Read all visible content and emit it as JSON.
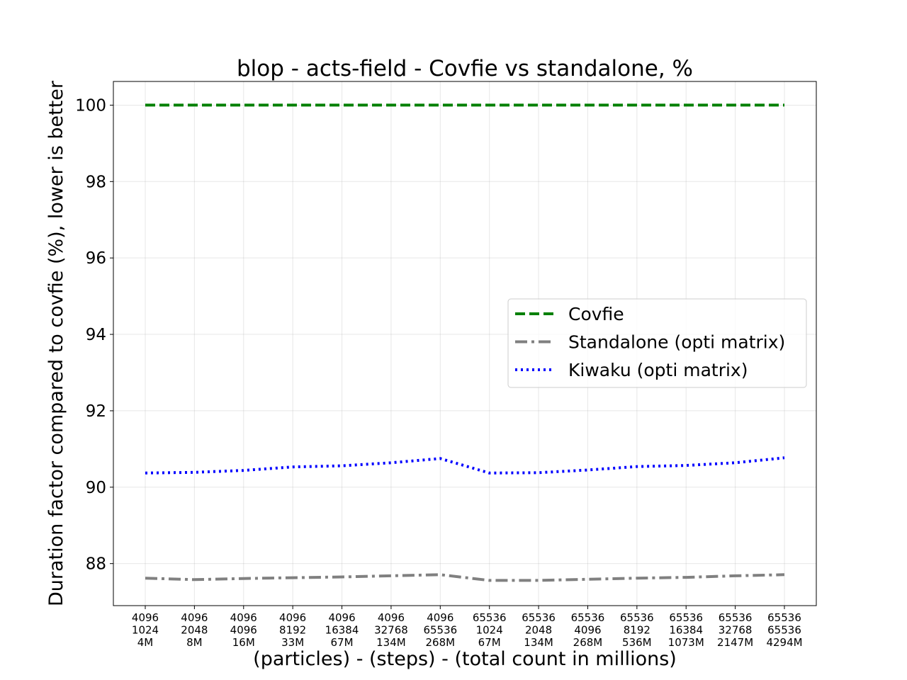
{
  "chart_data": {
    "type": "line",
    "title": "blop - acts-field - Covfie vs standalone, %",
    "xlabel": "(particles) - (steps) - (total count in millions)",
    "ylabel": "Duration factor compared to covfie (%), lower is better",
    "categories": [
      [
        "4096",
        "1024",
        "4M"
      ],
      [
        "4096",
        "2048",
        "8M"
      ],
      [
        "4096",
        "4096",
        "16M"
      ],
      [
        "4096",
        "8192",
        "33M"
      ],
      [
        "4096",
        "16384",
        "67M"
      ],
      [
        "4096",
        "32768",
        "134M"
      ],
      [
        "4096",
        "65536",
        "268M"
      ],
      [
        "65536",
        "1024",
        "67M"
      ],
      [
        "65536",
        "2048",
        "134M"
      ],
      [
        "65536",
        "4096",
        "268M"
      ],
      [
        "65536",
        "8192",
        "536M"
      ],
      [
        "65536",
        "16384",
        "1073M"
      ],
      [
        "65536",
        "32768",
        "2147M"
      ],
      [
        "65536",
        "65536",
        "4294M"
      ]
    ],
    "ylim": [
      86.9,
      100.62
    ],
    "yticks": [
      88,
      90,
      92,
      94,
      96,
      98,
      100
    ],
    "grid": true,
    "legend_position": "center-right",
    "series": [
      {
        "name": "Covfie",
        "color": "#008000",
        "style": "dashed",
        "values": [
          100,
          100,
          100,
          100,
          100,
          100,
          100,
          100,
          100,
          100,
          100,
          100,
          100,
          100
        ]
      },
      {
        "name": "Standalone (opti matrix)",
        "color": "#808080",
        "style": "dashdot",
        "values": [
          87.62,
          87.58,
          87.61,
          87.63,
          87.65,
          87.68,
          87.71,
          87.56,
          87.56,
          87.59,
          87.62,
          87.64,
          87.68,
          87.71
        ]
      },
      {
        "name": "Kiwaku (opti matrix)",
        "color": "#0000ff",
        "style": "dotted",
        "values": [
          90.37,
          90.39,
          90.44,
          90.53,
          90.56,
          90.64,
          90.75,
          90.37,
          90.38,
          90.45,
          90.54,
          90.57,
          90.64,
          90.77
        ]
      }
    ]
  }
}
